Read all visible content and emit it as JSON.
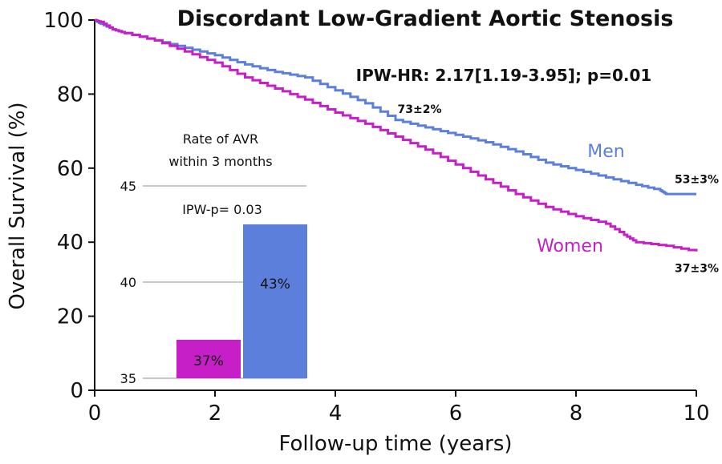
{
  "chart_data": [
    {
      "type": "line",
      "title": "Discordant Low-Gradient Aortic Stenosis",
      "xlabel": "Follow-up time (years)",
      "ylabel": "Overall Survival (%)",
      "xlim": [
        0,
        10
      ],
      "ylim": [
        0,
        100
      ],
      "xticks": [
        "0",
        "2",
        "4",
        "6",
        "8",
        "10"
      ],
      "yticks": [
        "0",
        "20",
        "40",
        "60",
        "80",
        "100"
      ],
      "grid": false,
      "annotation": "IPW-HR: 2.17[1.19-3.95]; p=0.01",
      "series": [
        {
          "name": "Men",
          "color": "#5b7fdb",
          "label_at": [
            8.5,
            63
          ],
          "end_label": "53±3%",
          "points": [
            [
              0,
              100
            ],
            [
              0.1,
              99
            ],
            [
              0.3,
              97.5
            ],
            [
              0.5,
              96.5
            ],
            [
              1,
              94.5
            ],
            [
              1.5,
              92.5
            ],
            [
              2,
              90.5
            ],
            [
              2.5,
              88
            ],
            [
              3,
              86
            ],
            [
              3.5,
              84.5
            ],
            [
              4,
              81
            ],
            [
              4.5,
              77.5
            ],
            [
              5,
              73
            ],
            [
              5.5,
              71
            ],
            [
              6,
              69
            ],
            [
              6.5,
              67
            ],
            [
              7,
              64.5
            ],
            [
              7.5,
              61.5
            ],
            [
              8,
              59.5
            ],
            [
              8.5,
              57.5
            ],
            [
              9,
              55.5
            ],
            [
              9.4,
              54
            ],
            [
              9.5,
              53
            ],
            [
              10,
              53
            ]
          ]
        },
        {
          "name": "Women",
          "color": "#c71fc7",
          "label_at": [
            7.9,
            37.5
          ],
          "end_label": "37±3%",
          "points": [
            [
              0,
              100
            ],
            [
              0.1,
              99.5
            ],
            [
              0.3,
              97.5
            ],
            [
              0.5,
              96.5
            ],
            [
              1,
              94.5
            ],
            [
              1.5,
              91.5
            ],
            [
              2,
              88.5
            ],
            [
              2.5,
              84.5
            ],
            [
              3,
              81.5
            ],
            [
              3.5,
              78.5
            ],
            [
              4,
              75
            ],
            [
              4.5,
              72
            ],
            [
              5,
              68.5
            ],
            [
              5.5,
              65
            ],
            [
              6,
              61
            ],
            [
              6.5,
              57
            ],
            [
              7,
              53
            ],
            [
              7.5,
              49.5
            ],
            [
              8,
              47
            ],
            [
              8.5,
              45
            ],
            [
              8.8,
              42
            ],
            [
              9,
              40
            ],
            [
              9.5,
              39
            ],
            [
              10,
              37.5
            ]
          ]
        }
      ],
      "point_labels": [
        {
          "text": "73±2%",
          "x": 5.4,
          "y": 76
        },
        {
          "text": "53±3%",
          "x": 10,
          "y": 57
        },
        {
          "text": "37±3%",
          "x": 10,
          "y": 33
        }
      ]
    },
    {
      "type": "bar",
      "title": "Rate of AVR\nwithin 3 months",
      "annotation": "IPW-p= 0.03",
      "ylim": [
        35,
        45
      ],
      "yticks": [
        "35",
        "40",
        "45"
      ],
      "categories": [
        "Women",
        "Men"
      ],
      "values": [
        37,
        43
      ],
      "colors": [
        "#c71fc7",
        "#5b7fdb"
      ],
      "value_labels": [
        "37%",
        "43%"
      ]
    }
  ]
}
